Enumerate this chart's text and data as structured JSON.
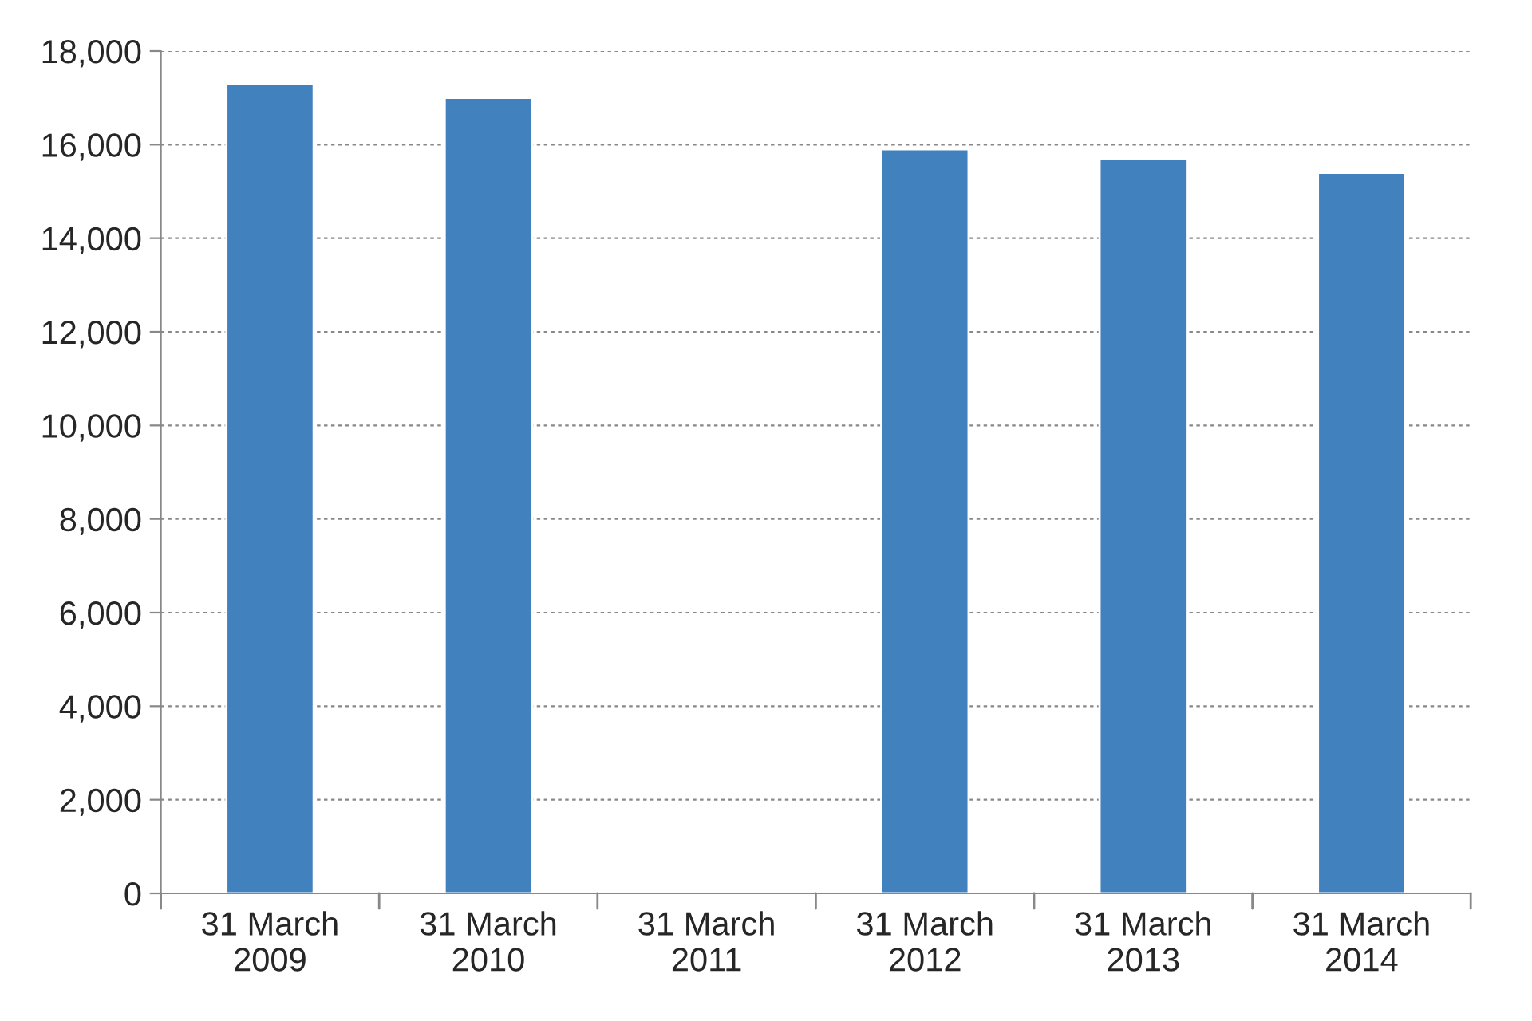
{
  "chart_data": {
    "type": "bar",
    "categories": [
      "31 March\n2009",
      "31 March\n2010",
      "31 March\n2011",
      "31 March\n2012",
      "31 March\n2013",
      "31 March\n2014"
    ],
    "values": [
      17300,
      17000,
      null,
      15900,
      15700,
      15400
    ],
    "color": "#4181be",
    "ylim": [
      0,
      18000
    ],
    "yticks": [
      {
        "value": 0,
        "label": "0"
      },
      {
        "value": 2000,
        "label": "2,000"
      },
      {
        "value": 4000,
        "label": "4,000"
      },
      {
        "value": 6000,
        "label": "6,000"
      },
      {
        "value": 8000,
        "label": "8,000"
      },
      {
        "value": 10000,
        "label": "10,000"
      },
      {
        "value": 12000,
        "label": "12,000"
      },
      {
        "value": 14000,
        "label": "14,000"
      },
      {
        "value": 16000,
        "label": "16,000"
      },
      {
        "value": 18000,
        "label": "18,000"
      }
    ],
    "grid": "y",
    "legend": false
  }
}
